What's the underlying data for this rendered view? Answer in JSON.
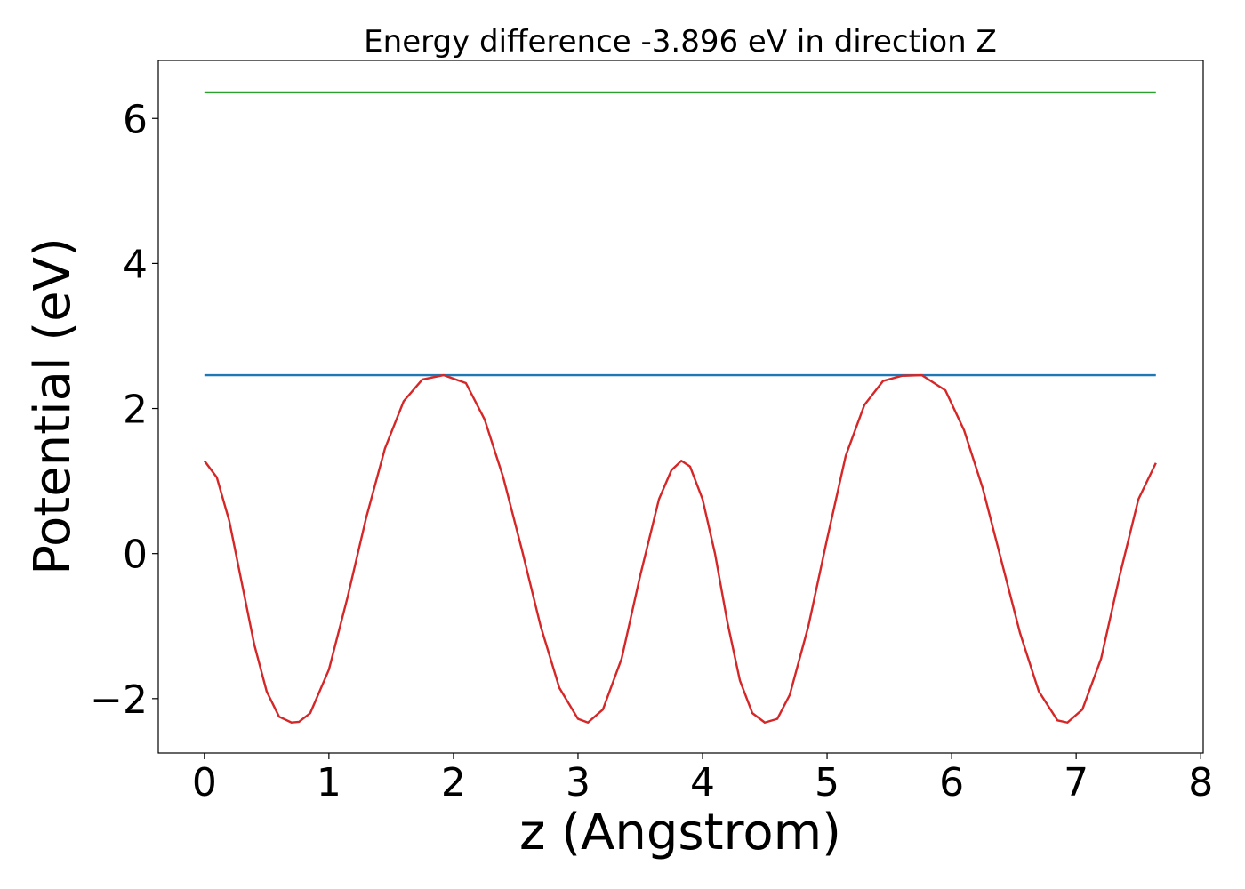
{
  "chart_data": {
    "type": "line",
    "title": "Energy difference -3.896 eV in direction Z",
    "xlabel": "z (Angstrom)",
    "ylabel": "Potential (eV)",
    "xlim": [
      -0.37,
      8.02
    ],
    "ylim": [
      -2.75,
      6.8
    ],
    "x_ticks": [
      0,
      1,
      2,
      3,
      4,
      5,
      6,
      7,
      8
    ],
    "y_ticks": [
      -2,
      0,
      2,
      4,
      6
    ],
    "x_tick_labels": [
      "0",
      "1",
      "2",
      "3",
      "4",
      "5",
      "6",
      "7",
      "8"
    ],
    "y_tick_labels": [
      "−2",
      "0",
      "2",
      "4",
      "6"
    ],
    "grid": false,
    "legend": "none",
    "series": [
      {
        "color": "#2ca02c",
        "x": [
          0,
          7.64
        ],
        "y": [
          6.36,
          6.36
        ]
      },
      {
        "color": "#1f77b4",
        "x": [
          0,
          7.64
        ],
        "y": [
          2.46,
          2.46
        ]
      },
      {
        "color": "#d62728",
        "x": [
          0.0,
          0.1,
          0.2,
          0.3,
          0.4,
          0.5,
          0.6,
          0.7,
          0.76,
          0.85,
          1.0,
          1.15,
          1.3,
          1.45,
          1.6,
          1.75,
          1.92,
          2.1,
          2.25,
          2.4,
          2.55,
          2.7,
          2.85,
          3.0,
          3.08,
          3.2,
          3.35,
          3.5,
          3.65,
          3.75,
          3.83,
          3.9,
          4.0,
          4.1,
          4.2,
          4.3,
          4.4,
          4.5,
          4.6,
          4.7,
          4.85,
          5.0,
          5.15,
          5.3,
          5.45,
          5.6,
          5.76,
          5.95,
          6.1,
          6.25,
          6.4,
          6.55,
          6.7,
          6.85,
          6.93,
          7.05,
          7.2,
          7.35,
          7.5,
          7.64
        ],
        "y": [
          1.28,
          1.05,
          0.45,
          -0.4,
          -1.25,
          -1.9,
          -2.25,
          -2.33,
          -2.32,
          -2.2,
          -1.6,
          -0.6,
          0.5,
          1.45,
          2.1,
          2.4,
          2.46,
          2.35,
          1.85,
          1.05,
          0.05,
          -1.0,
          -1.85,
          -2.28,
          -2.33,
          -2.15,
          -1.45,
          -0.3,
          0.75,
          1.15,
          1.28,
          1.2,
          0.75,
          0.0,
          -0.95,
          -1.75,
          -2.2,
          -2.33,
          -2.28,
          -1.95,
          -1.0,
          0.2,
          1.35,
          2.05,
          2.38,
          2.45,
          2.46,
          2.25,
          1.7,
          0.9,
          -0.1,
          -1.1,
          -1.9,
          -2.3,
          -2.33,
          -2.15,
          -1.45,
          -0.3,
          0.75,
          1.25
        ]
      }
    ]
  }
}
